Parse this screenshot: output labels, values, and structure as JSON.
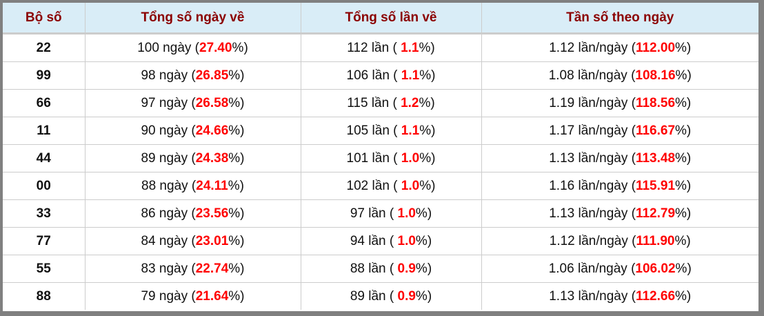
{
  "headers": [
    "Bộ số",
    "Tổng số ngày về",
    "Tổng số lần về",
    "Tần số theo ngày"
  ],
  "colors": {
    "header_bg": "#d9edf7",
    "header_text": "#8b0000",
    "highlight": "#ff0000",
    "frame": "#808080"
  },
  "rows": [
    {
      "so": "22",
      "ngay": "100",
      "ngay_pct": "27.40",
      "lan": "112",
      "lan_pct": "1.1",
      "tanso": "1.12",
      "tanso_pct": "112.00"
    },
    {
      "so": "99",
      "ngay": "98",
      "ngay_pct": "26.85",
      "lan": "106",
      "lan_pct": "1.1",
      "tanso": "1.08",
      "tanso_pct": "108.16"
    },
    {
      "so": "66",
      "ngay": "97",
      "ngay_pct": "26.58",
      "lan": "115",
      "lan_pct": "1.2",
      "tanso": "1.19",
      "tanso_pct": "118.56"
    },
    {
      "so": "11",
      "ngay": "90",
      "ngay_pct": "24.66",
      "lan": "105",
      "lan_pct": "1.1",
      "tanso": "1.17",
      "tanso_pct": "116.67"
    },
    {
      "so": "44",
      "ngay": "89",
      "ngay_pct": "24.38",
      "lan": "101",
      "lan_pct": "1.0",
      "tanso": "1.13",
      "tanso_pct": "113.48"
    },
    {
      "so": "00",
      "ngay": "88",
      "ngay_pct": "24.11",
      "lan": "102",
      "lan_pct": "1.0",
      "tanso": "1.16",
      "tanso_pct": "115.91"
    },
    {
      "so": "33",
      "ngay": "86",
      "ngay_pct": "23.56",
      "lan": "97",
      "lan_pct": "1.0",
      "tanso": "1.13",
      "tanso_pct": "112.79"
    },
    {
      "so": "77",
      "ngay": "84",
      "ngay_pct": "23.01",
      "lan": "94",
      "lan_pct": "1.0",
      "tanso": "1.12",
      "tanso_pct": "111.90"
    },
    {
      "so": "55",
      "ngay": "83",
      "ngay_pct": "22.74",
      "lan": "88",
      "lan_pct": "0.9",
      "tanso": "1.06",
      "tanso_pct": "106.02"
    },
    {
      "so": "88",
      "ngay": "79",
      "ngay_pct": "21.64",
      "lan": "89",
      "lan_pct": "0.9",
      "tanso": "1.13",
      "tanso_pct": "112.66"
    }
  ],
  "units": {
    "ngay": " ngày (",
    "lan": " lần ( ",
    "tanso": " lần/ngày (",
    "pct_close": "%)"
  }
}
